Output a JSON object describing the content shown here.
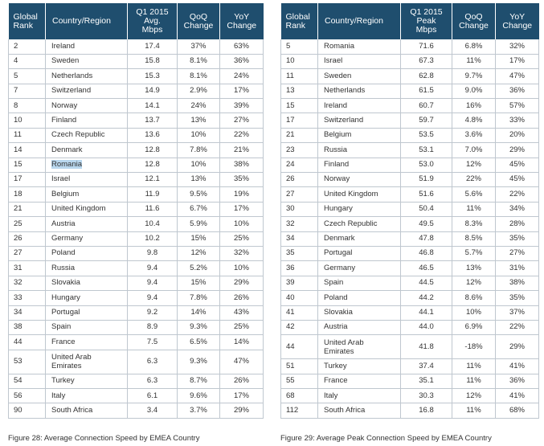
{
  "left_table": {
    "headers": {
      "rank": [
        "Global",
        "Rank"
      ],
      "country": "Country/Region",
      "metric": [
        "Q1 2015",
        "Avg.",
        "Mbps"
      ],
      "qoq": [
        "QoQ",
        "Change"
      ],
      "yoy": [
        "YoY",
        "Change"
      ]
    },
    "rows": [
      {
        "rank": "2",
        "country": "Ireland",
        "value": "17.4",
        "qoq": "37%",
        "yoy": "63%"
      },
      {
        "rank": "4",
        "country": "Sweden",
        "value": "15.8",
        "qoq": "8.1%",
        "yoy": "36%"
      },
      {
        "rank": "5",
        "country": "Netherlands",
        "value": "15.3",
        "qoq": "8.1%",
        "yoy": "24%"
      },
      {
        "rank": "7",
        "country": "Switzerland",
        "value": "14.9",
        "qoq": "2.9%",
        "yoy": "17%"
      },
      {
        "rank": "8",
        "country": "Norway",
        "value": "14.1",
        "qoq": "24%",
        "yoy": "39%"
      },
      {
        "rank": "10",
        "country": "Finland",
        "value": "13.7",
        "qoq": "13%",
        "yoy": "27%"
      },
      {
        "rank": "11",
        "country": "Czech Republic",
        "value": "13.6",
        "qoq": "10%",
        "yoy": "22%"
      },
      {
        "rank": "14",
        "country": "Denmark",
        "value": "12.8",
        "qoq": "7.8%",
        "yoy": "21%"
      },
      {
        "rank": "15",
        "country": "Romania",
        "value": "12.8",
        "qoq": "10%",
        "yoy": "38%",
        "highlight": true
      },
      {
        "rank": "17",
        "country": "Israel",
        "value": "12.1",
        "qoq": "13%",
        "yoy": "35%"
      },
      {
        "rank": "18",
        "country": "Belgium",
        "value": "11.9",
        "qoq": "9.5%",
        "yoy": "19%"
      },
      {
        "rank": "21",
        "country": "United Kingdom",
        "value": "11.6",
        "qoq": "6.7%",
        "yoy": "17%"
      },
      {
        "rank": "25",
        "country": "Austria",
        "value": "10.4",
        "qoq": "5.9%",
        "yoy": "10%"
      },
      {
        "rank": "26",
        "country": "Germany",
        "value": "10.2",
        "qoq": "15%",
        "yoy": "25%"
      },
      {
        "rank": "27",
        "country": "Poland",
        "value": "9.8",
        "qoq": "12%",
        "yoy": "32%"
      },
      {
        "rank": "31",
        "country": "Russia",
        "value": "9.4",
        "qoq": "5.2%",
        "yoy": "10%"
      },
      {
        "rank": "32",
        "country": "Slovakia",
        "value": "9.4",
        "qoq": "15%",
        "yoy": "29%"
      },
      {
        "rank": "33",
        "country": "Hungary",
        "value": "9.4",
        "qoq": "7.8%",
        "yoy": "26%"
      },
      {
        "rank": "34",
        "country": "Portugal",
        "value": "9.2",
        "qoq": "14%",
        "yoy": "43%"
      },
      {
        "rank": "38",
        "country": "Spain",
        "value": "8.9",
        "qoq": "9.3%",
        "yoy": "25%"
      },
      {
        "rank": "44",
        "country": "France",
        "value": "7.5",
        "qoq": "6.5%",
        "yoy": "14%"
      },
      {
        "rank": "53",
        "country": [
          "United Arab",
          "Emirates"
        ],
        "value": "6.3",
        "qoq": "9.3%",
        "yoy": "47%"
      },
      {
        "rank": "54",
        "country": "Turkey",
        "value": "6.3",
        "qoq": "8.7%",
        "yoy": "26%"
      },
      {
        "rank": "56",
        "country": "Italy",
        "value": "6.1",
        "qoq": "9.6%",
        "yoy": "17%"
      },
      {
        "rank": "90",
        "country": "South Africa",
        "value": "3.4",
        "qoq": "3.7%",
        "yoy": "29%"
      }
    ],
    "caption": "Figure 28: Average Connection Speed by EMEA Country"
  },
  "right_table": {
    "headers": {
      "rank": [
        "Global",
        "Rank"
      ],
      "country": "Country/Region",
      "metric": [
        "Q1 2015",
        "Peak",
        "Mbps"
      ],
      "qoq": [
        "QoQ",
        "Change"
      ],
      "yoy": [
        "YoY",
        "Change"
      ]
    },
    "rows": [
      {
        "rank": "5",
        "country": "Romania",
        "value": "71.6",
        "qoq": "6.8%",
        "yoy": "32%"
      },
      {
        "rank": "10",
        "country": "Israel",
        "value": "67.3",
        "qoq": "11%",
        "yoy": "17%"
      },
      {
        "rank": "11",
        "country": "Sweden",
        "value": "62.8",
        "qoq": "9.7%",
        "yoy": "47%"
      },
      {
        "rank": "13",
        "country": "Netherlands",
        "value": "61.5",
        "qoq": "9.0%",
        "yoy": "36%"
      },
      {
        "rank": "15",
        "country": "Ireland",
        "value": "60.7",
        "qoq": "16%",
        "yoy": "57%"
      },
      {
        "rank": "17",
        "country": "Switzerland",
        "value": "59.7",
        "qoq": "4.8%",
        "yoy": "33%"
      },
      {
        "rank": "21",
        "country": "Belgium",
        "value": "53.5",
        "qoq": "3.6%",
        "yoy": "20%"
      },
      {
        "rank": "23",
        "country": "Russia",
        "value": "53.1",
        "qoq": "7.0%",
        "yoy": "29%"
      },
      {
        "rank": "24",
        "country": "Finland",
        "value": "53.0",
        "qoq": "12%",
        "yoy": "45%"
      },
      {
        "rank": "26",
        "country": "Norway",
        "value": "51.9",
        "qoq": "22%",
        "yoy": "45%"
      },
      {
        "rank": "27",
        "country": "United Kingdom",
        "value": "51.6",
        "qoq": "5.6%",
        "yoy": "22%"
      },
      {
        "rank": "30",
        "country": "Hungary",
        "value": "50.4",
        "qoq": "11%",
        "yoy": "34%"
      },
      {
        "rank": "32",
        "country": "Czech Republic",
        "value": "49.5",
        "qoq": "8.3%",
        "yoy": "28%"
      },
      {
        "rank": "34",
        "country": "Denmark",
        "value": "47.8",
        "qoq": "8.5%",
        "yoy": "35%"
      },
      {
        "rank": "35",
        "country": "Portugal",
        "value": "46.8",
        "qoq": "5.7%",
        "yoy": "27%"
      },
      {
        "rank": "36",
        "country": "Germany",
        "value": "46.5",
        "qoq": "13%",
        "yoy": "31%"
      },
      {
        "rank": "39",
        "country": "Spain",
        "value": "44.5",
        "qoq": "12%",
        "yoy": "38%"
      },
      {
        "rank": "40",
        "country": "Poland",
        "value": "44.2",
        "qoq": "8.6%",
        "yoy": "35%"
      },
      {
        "rank": "41",
        "country": "Slovakia",
        "value": "44.1",
        "qoq": "10%",
        "yoy": "37%"
      },
      {
        "rank": "42",
        "country": "Austria",
        "value": "44.0",
        "qoq": "6.9%",
        "yoy": "22%"
      },
      {
        "rank": "44",
        "country": [
          "United Arab",
          "Emirates"
        ],
        "value": "41.8",
        "qoq": "-18%",
        "yoy": "29%"
      },
      {
        "rank": "51",
        "country": "Turkey",
        "value": "37.4",
        "qoq": "11%",
        "yoy": "41%"
      },
      {
        "rank": "55",
        "country": "France",
        "value": "35.1",
        "qoq": "11%",
        "yoy": "36%"
      },
      {
        "rank": "68",
        "country": "Italy",
        "value": "30.3",
        "qoq": "12%",
        "yoy": "41%"
      },
      {
        "rank": "112",
        "country": "South Africa",
        "value": "16.8",
        "qoq": "11%",
        "yoy": "68%"
      }
    ],
    "caption": "Figure 29: Average Peak Connection Speed by EMEA Country"
  },
  "colors": {
    "header_bg": "#1f4e6e",
    "header_text": "#ffffff",
    "grid": "#bfc7cf",
    "highlight": "#b9d7ee"
  }
}
